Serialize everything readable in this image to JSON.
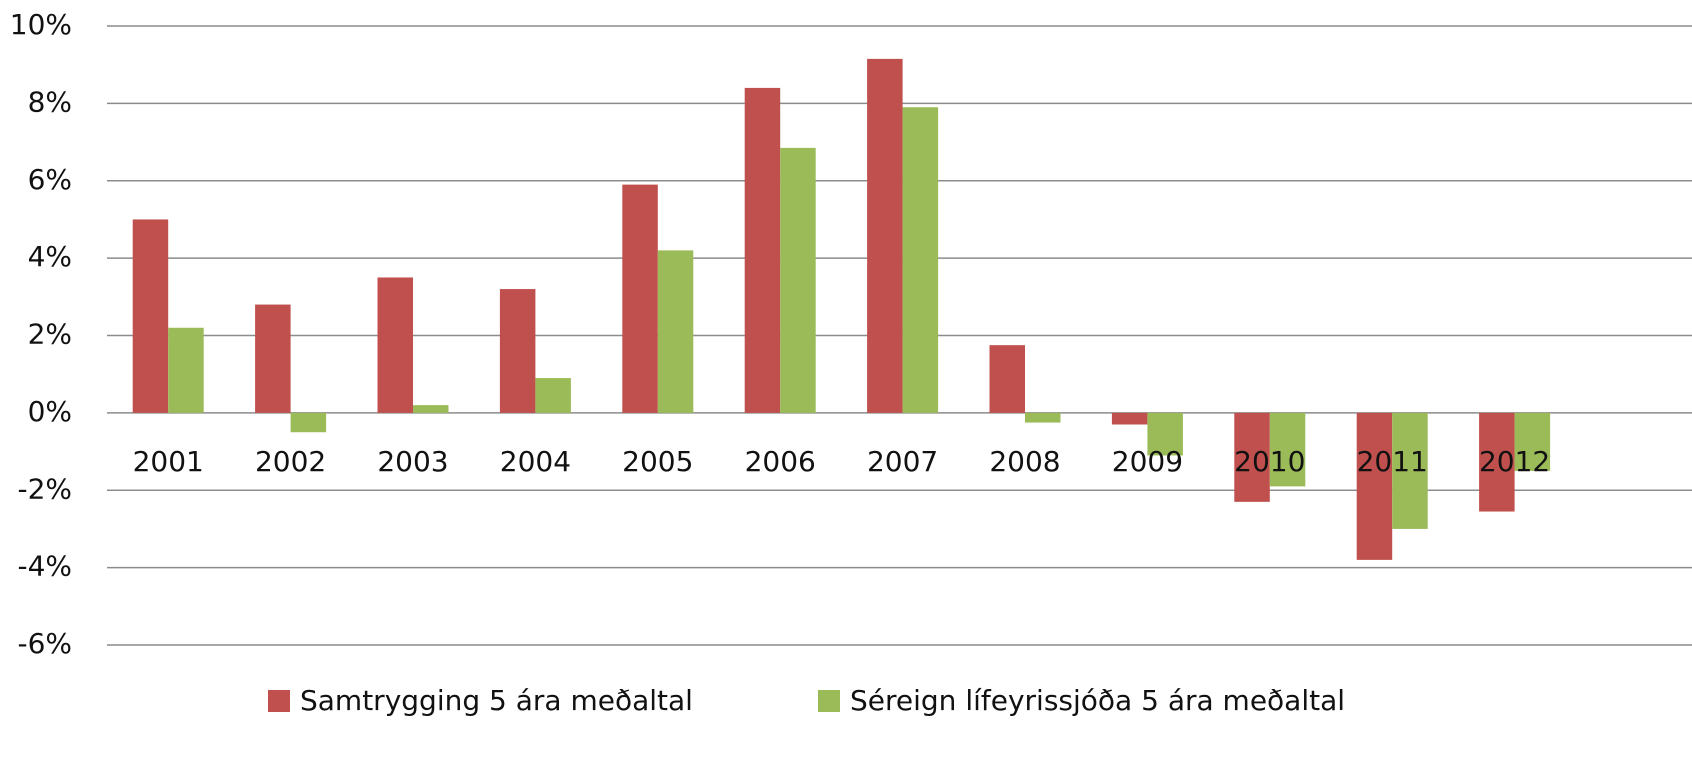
{
  "chart_data": {
    "type": "bar",
    "categories": [
      "2001",
      "2002",
      "2003",
      "2004",
      "2005",
      "2006",
      "2007",
      "2008",
      "2009",
      "2010",
      "2011",
      "2012"
    ],
    "series": [
      {
        "name": "Samtrygging 5 ára meðaltal",
        "color": "#c0504d",
        "values": [
          5.0,
          2.8,
          3.5,
          3.2,
          5.9,
          8.4,
          9.15,
          1.75,
          -0.3,
          -2.3,
          -3.8,
          -2.55
        ]
      },
      {
        "name": "Séreign lífeyrissjóða 5 ára meðaltal",
        "color": "#9bbb59",
        "values": [
          2.2,
          -0.5,
          0.2,
          0.9,
          4.2,
          6.85,
          7.9,
          -0.25,
          -1.1,
          -1.9,
          -3.0,
          -1.5
        ]
      }
    ],
    "ylim": [
      -6,
      10
    ],
    "yticks": [
      {
        "value": -6,
        "label": "-6%"
      },
      {
        "value": -4,
        "label": "-4%"
      },
      {
        "value": -2,
        "label": "-2%"
      },
      {
        "value": 0,
        "label": "0%"
      },
      {
        "value": 2,
        "label": "2%"
      },
      {
        "value": 4,
        "label": "4%"
      },
      {
        "value": 6,
        "label": "6%"
      },
      {
        "value": 8,
        "label": "8%"
      },
      {
        "value": 10,
        "label": "10%"
      }
    ],
    "grid": true,
    "legend": "bottom"
  }
}
